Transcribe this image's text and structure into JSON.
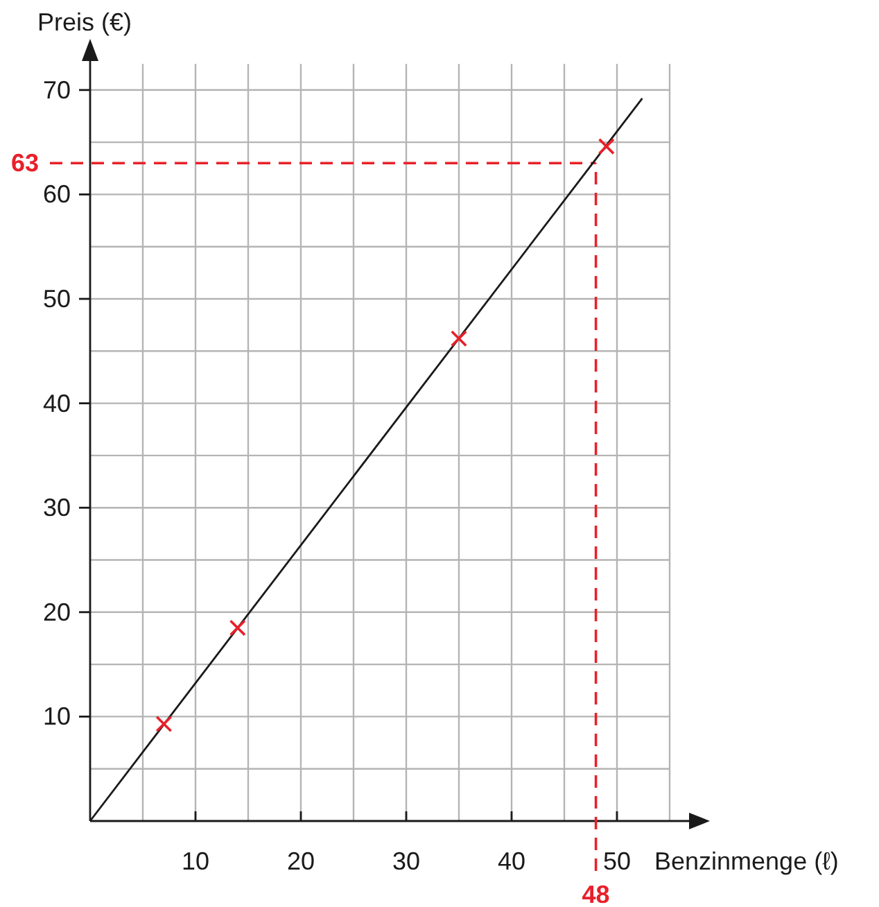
{
  "chart_data": {
    "type": "scatter",
    "xlabel": "Benzinmenge (ℓ)",
    "ylabel": "Preis (€)",
    "xlim": [
      0,
      55
    ],
    "ylim": [
      0,
      72.5
    ],
    "xticks": [
      {
        "value": 5,
        "label": null
      },
      10,
      {
        "value": 15,
        "label": null
      },
      20,
      {
        "value": 25,
        "label": null
      },
      30,
      {
        "value": 35,
        "label": null
      },
      40,
      {
        "value": 45,
        "label": null
      },
      50,
      {
        "value": 55,
        "label": null
      }
    ],
    "yticks": [
      {
        "value": 5,
        "label": null
      },
      10,
      {
        "value": 15,
        "label": null
      },
      20,
      {
        "value": 25,
        "label": null
      },
      30,
      {
        "value": 35,
        "label": null
      },
      40,
      {
        "value": 45,
        "label": null
      },
      50,
      {
        "value": 55,
        "label": null
      },
      60,
      {
        "value": 65,
        "label": null
      },
      70
    ],
    "grid": true,
    "series": [
      {
        "type": "line",
        "color": "#1a1a1a",
        "x": [
          0,
          52.4
        ],
        "values": [
          0,
          69.2
        ]
      },
      {
        "marker": "cross",
        "color": "#e8202a",
        "x": [
          7,
          14,
          35,
          49
        ],
        "values": [
          9.3,
          18.5,
          46.2,
          64.6
        ]
      }
    ],
    "ref_lines": [
      {
        "axis": "y",
        "value": 63,
        "label": "63",
        "color": "#e8202a",
        "line_style": "dashed"
      },
      {
        "axis": "x",
        "value": 48,
        "label": "48",
        "color": "#e8202a",
        "line_style": "dashed"
      }
    ]
  }
}
